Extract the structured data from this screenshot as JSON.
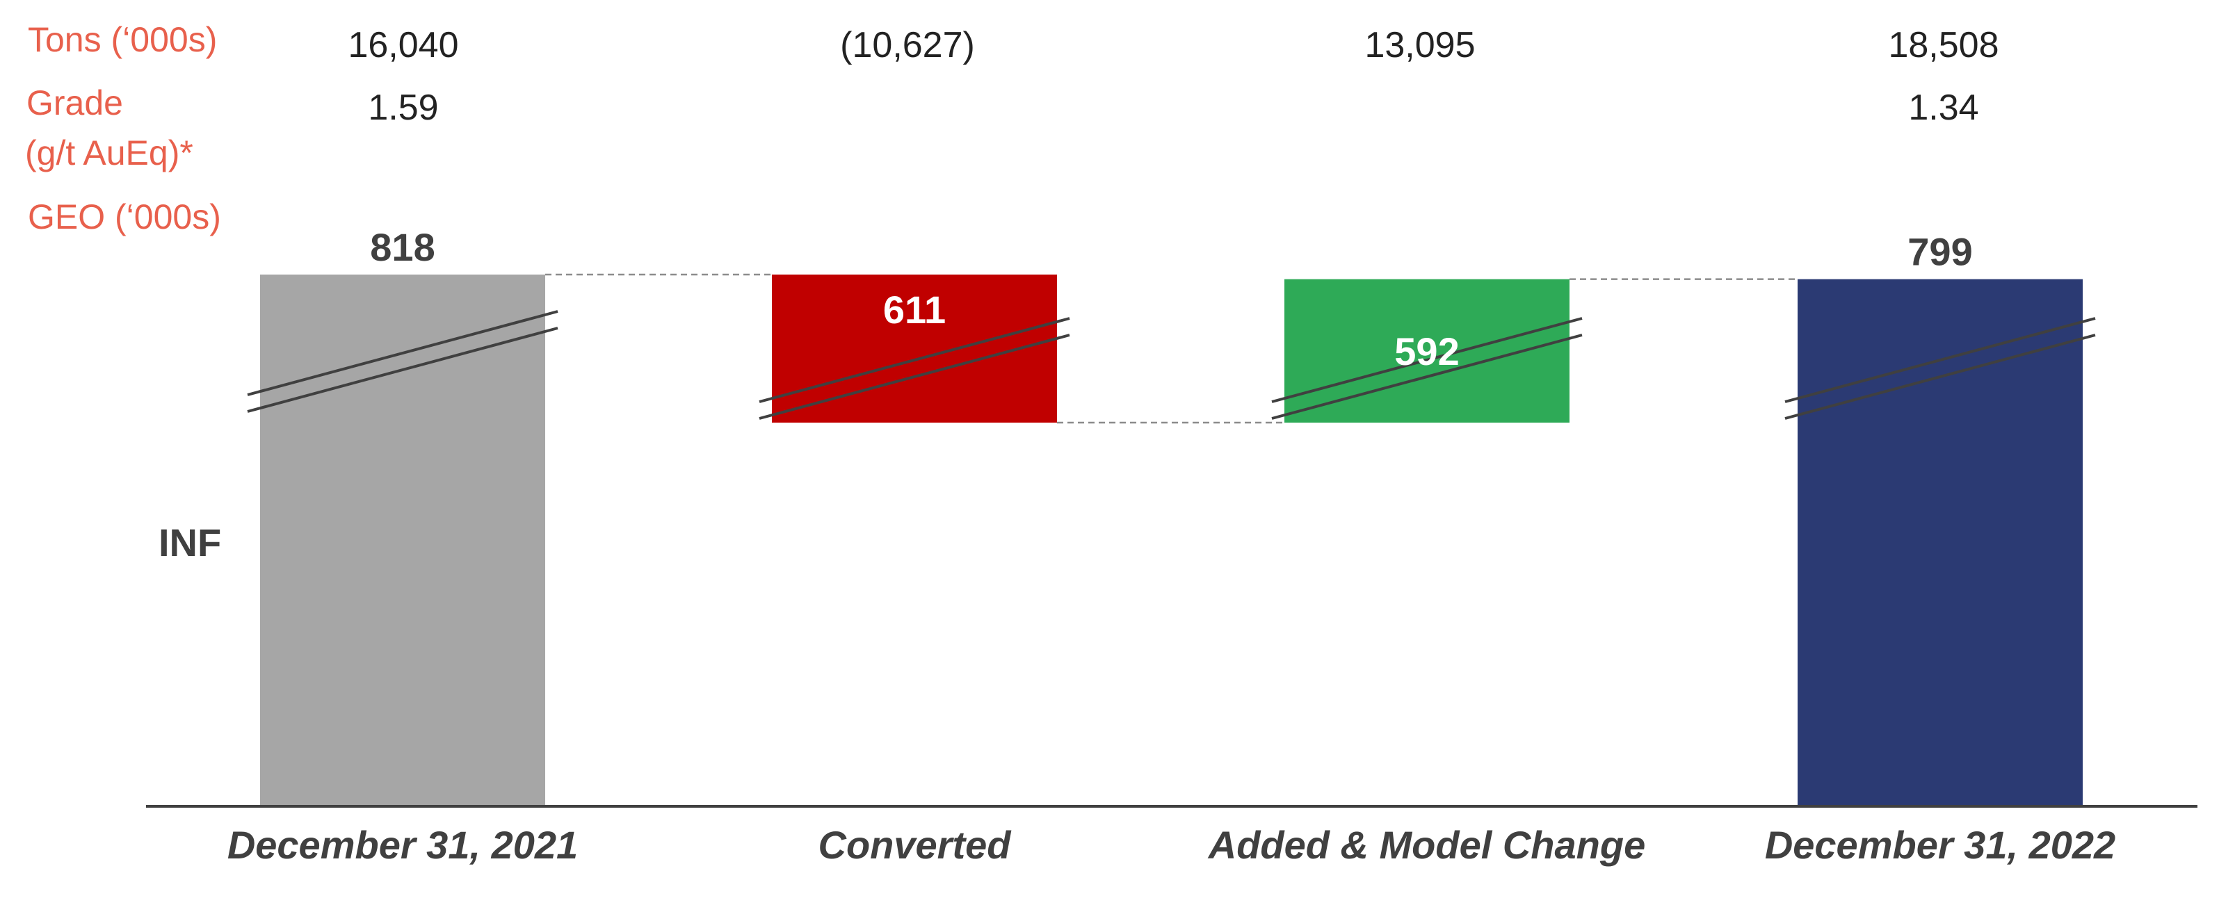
{
  "table": {
    "rows": [
      {
        "label": "Tons (‘000s)",
        "values": [
          "16,040",
          "(10,627)",
          "13,095",
          "18,508"
        ]
      },
      {
        "label": "Grade",
        "label_line2": "(g/t AuEq)*",
        "values": [
          "1.59",
          "",
          "",
          "1.34"
        ]
      },
      {
        "label": "GEO (‘000s)"
      }
    ]
  },
  "side_label": "INF",
  "chart_data": {
    "type": "bar",
    "subtype": "waterfall",
    "categories": [
      "December 31, 2021",
      "Converted",
      "Added & Model Change",
      "December 31, 2022"
    ],
    "values": [
      818,
      -611,
      592,
      799
    ],
    "value_labels": [
      "818",
      "611",
      "592",
      "799"
    ],
    "bar_kinds": [
      "total",
      "decrease",
      "increase",
      "total"
    ],
    "y_axis_broken": true,
    "colors": {
      "total_start": "#a6a6a6",
      "decrease": "#c00000",
      "increase": "#2eaa57",
      "total_end": "#2b3a73",
      "axis": "#404040",
      "connector": "#8c8c8c",
      "break_marks": "#404040",
      "row_labels": "#e8604c"
    },
    "gridlines": false,
    "legend": "none"
  }
}
